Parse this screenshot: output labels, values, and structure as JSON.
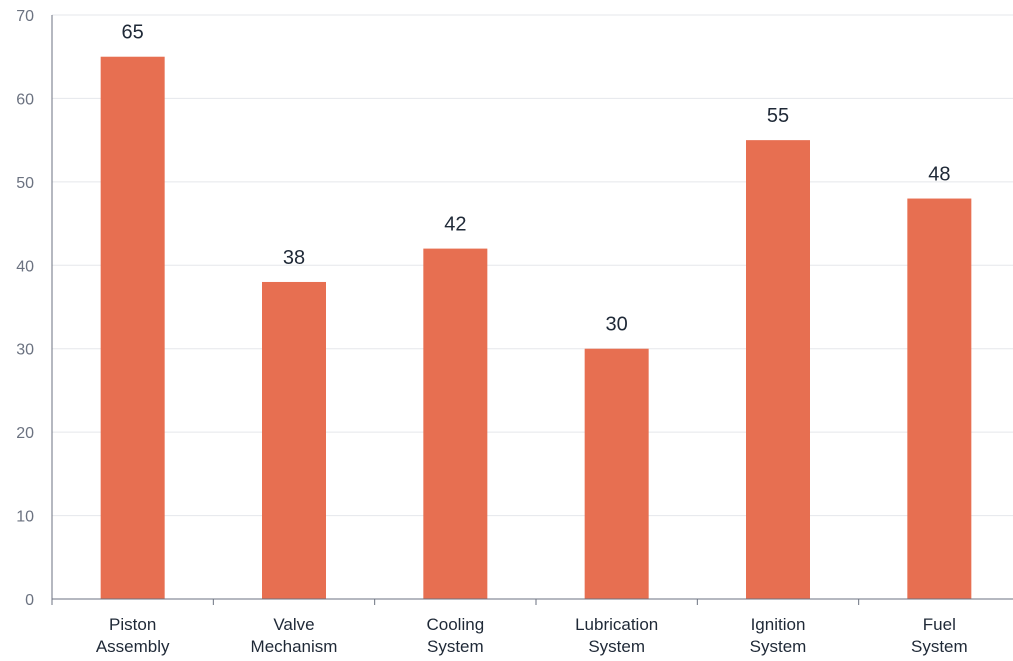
{
  "chart_data": {
    "type": "bar",
    "title": "",
    "xlabel": "",
    "ylabel": "",
    "categories": [
      [
        "Piston",
        "Assembly"
      ],
      [
        "Valve",
        "Mechanism"
      ],
      [
        "Cooling",
        "System"
      ],
      [
        "Lubrication",
        "System"
      ],
      [
        "Ignition",
        "System"
      ],
      [
        "Fuel",
        "System"
      ]
    ],
    "values": [
      65,
      38,
      42,
      30,
      55,
      48
    ],
    "ylim": [
      0,
      70
    ],
    "yticks": [
      0,
      10,
      20,
      30,
      40,
      50,
      60,
      70
    ],
    "grid": "horizontal",
    "legend": "none",
    "colors": {
      "bar": "#e76f51",
      "grid": "#e5e7eb",
      "axis": "#6b7280"
    }
  }
}
